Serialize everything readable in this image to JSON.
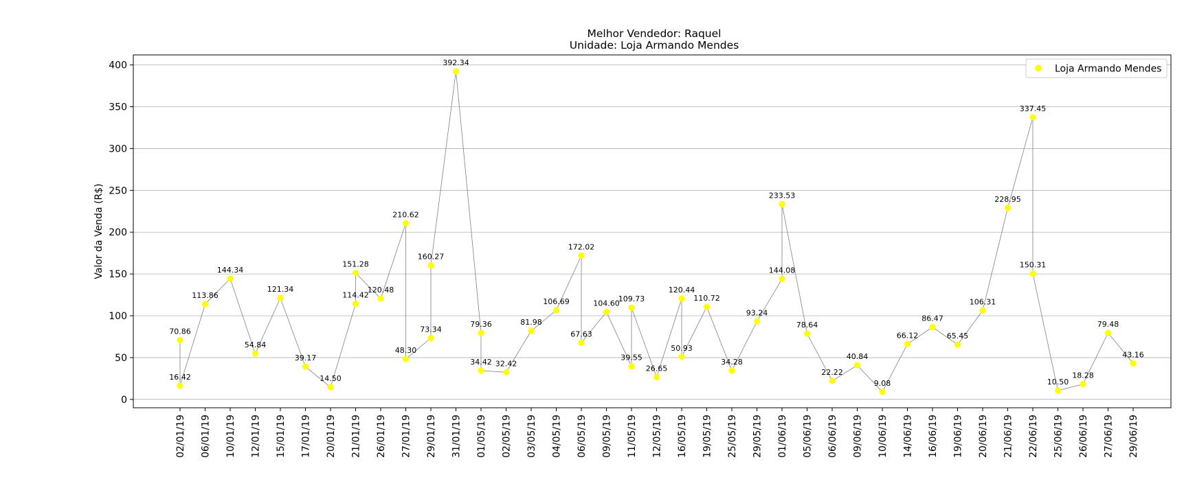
{
  "chart_data": {
    "type": "scatter",
    "title": "Melhor Vendedor:  Raquel",
    "subtitle": "Unidade: Loja Armando Mendes",
    "xlabel": "",
    "ylabel": "Valor da Venda (R$)",
    "ylim": [
      -10,
      412
    ],
    "yticks": [
      0,
      50,
      100,
      150,
      200,
      250,
      300,
      350,
      400
    ],
    "grid": "horizontal",
    "legend_position": "top-right",
    "colors": {
      "marker": "#ffff00",
      "line": "#808080",
      "grid": "#b0b0b0"
    },
    "categories": [
      "02/01/19",
      "06/01/19",
      "10/01/19",
      "12/01/19",
      "15/01/19",
      "17/01/19",
      "20/01/19",
      "21/01/19",
      "26/01/19",
      "27/01/19",
      "29/01/19",
      "31/01/19",
      "01/05/19",
      "02/05/19",
      "03/05/19",
      "04/05/19",
      "06/05/19",
      "09/05/19",
      "11/05/19",
      "12/05/19",
      "16/05/19",
      "19/05/19",
      "25/05/19",
      "29/05/19",
      "01/06/19",
      "05/06/19",
      "06/06/19",
      "09/06/19",
      "10/06/19",
      "14/06/19",
      "16/06/19",
      "19/06/19",
      "20/06/19",
      "21/06/19",
      "22/06/19",
      "25/06/19",
      "26/06/19",
      "27/06/19",
      "29/06/19"
    ],
    "series": [
      {
        "name": "Loja Armando Mendes",
        "points": [
          {
            "x": "02/01/19",
            "y": 70.86,
            "label": "70.86"
          },
          {
            "x": "02/01/19",
            "y": 16.42,
            "label": "16.42"
          },
          {
            "x": "06/01/19",
            "y": 113.86,
            "label": "113.86"
          },
          {
            "x": "10/01/19",
            "y": 144.34,
            "label": "144.34"
          },
          {
            "x": "12/01/19",
            "y": 54.84,
            "label": "54.84"
          },
          {
            "x": "15/01/19",
            "y": 121.34,
            "label": "121.34"
          },
          {
            "x": "17/01/19",
            "y": 39.17,
            "label": "39.17"
          },
          {
            "x": "20/01/19",
            "y": 14.5,
            "label": "14.50"
          },
          {
            "x": "21/01/19",
            "y": 114.42,
            "label": "114.42"
          },
          {
            "x": "21/01/19",
            "y": 151.28,
            "label": "151.28"
          },
          {
            "x": "26/01/19",
            "y": 120.48,
            "label": "120.48"
          },
          {
            "x": "27/01/19",
            "y": 210.62,
            "label": "210.62"
          },
          {
            "x": "27/01/19",
            "y": 48.3,
            "label": "48.30"
          },
          {
            "x": "29/01/19",
            "y": 73.34,
            "label": "73.34"
          },
          {
            "x": "29/01/19",
            "y": 160.27,
            "label": "160.27"
          },
          {
            "x": "31/01/19",
            "y": 392.34,
            "label": "392.34"
          },
          {
            "x": "01/05/19",
            "y": 79.36,
            "label": "79.36"
          },
          {
            "x": "01/05/19",
            "y": 34.42,
            "label": "34.42"
          },
          {
            "x": "02/05/19",
            "y": 32.42,
            "label": "32.42"
          },
          {
            "x": "03/05/19",
            "y": 81.98,
            "label": "81.98"
          },
          {
            "x": "04/05/19",
            "y": 106.69,
            "label": "106.69"
          },
          {
            "x": "06/05/19",
            "y": 172.02,
            "label": "172.02"
          },
          {
            "x": "06/05/19",
            "y": 67.63,
            "label": "67.63"
          },
          {
            "x": "09/05/19",
            "y": 104.6,
            "label": "104.60"
          },
          {
            "x": "11/05/19",
            "y": 39.55,
            "label": "39.55"
          },
          {
            "x": "11/05/19",
            "y": 109.73,
            "label": "109.73"
          },
          {
            "x": "12/05/19",
            "y": 26.65,
            "label": "26.65"
          },
          {
            "x": "16/05/19",
            "y": 120.44,
            "label": "120.44"
          },
          {
            "x": "16/05/19",
            "y": 50.93,
            "label": "50.93"
          },
          {
            "x": "19/05/19",
            "y": 110.72,
            "label": "110.72"
          },
          {
            "x": "25/05/19",
            "y": 34.28,
            "label": "34.28"
          },
          {
            "x": "29/05/19",
            "y": 93.24,
            "label": "93.24"
          },
          {
            "x": "01/06/19",
            "y": 144.08,
            "label": "144.08"
          },
          {
            "x": "01/06/19",
            "y": 233.53,
            "label": "233.53"
          },
          {
            "x": "05/06/19",
            "y": 78.64,
            "label": "78.64"
          },
          {
            "x": "06/06/19",
            "y": 22.22,
            "label": "22.22"
          },
          {
            "x": "09/06/19",
            "y": 40.84,
            "label": "40.84"
          },
          {
            "x": "10/06/19",
            "y": 9.08,
            "label": "9.08"
          },
          {
            "x": "14/06/19",
            "y": 66.12,
            "label": "66.12"
          },
          {
            "x": "16/06/19",
            "y": 86.47,
            "label": "86.47"
          },
          {
            "x": "19/06/19",
            "y": 65.45,
            "label": "65.45"
          },
          {
            "x": "20/06/19",
            "y": 106.31,
            "label": "106.31"
          },
          {
            "x": "21/06/19",
            "y": 228.95,
            "label": "228.95"
          },
          {
            "x": "22/06/19",
            "y": 337.45,
            "label": "337.45"
          },
          {
            "x": "22/06/19",
            "y": 150.31,
            "label": "150.31"
          },
          {
            "x": "25/06/19",
            "y": 10.5,
            "label": "10.50"
          },
          {
            "x": "26/06/19",
            "y": 18.28,
            "label": "18.28"
          },
          {
            "x": "27/06/19",
            "y": 79.48,
            "label": "79.48"
          },
          {
            "x": "29/06/19",
            "y": 43.16,
            "label": "43.16"
          }
        ]
      }
    ]
  }
}
